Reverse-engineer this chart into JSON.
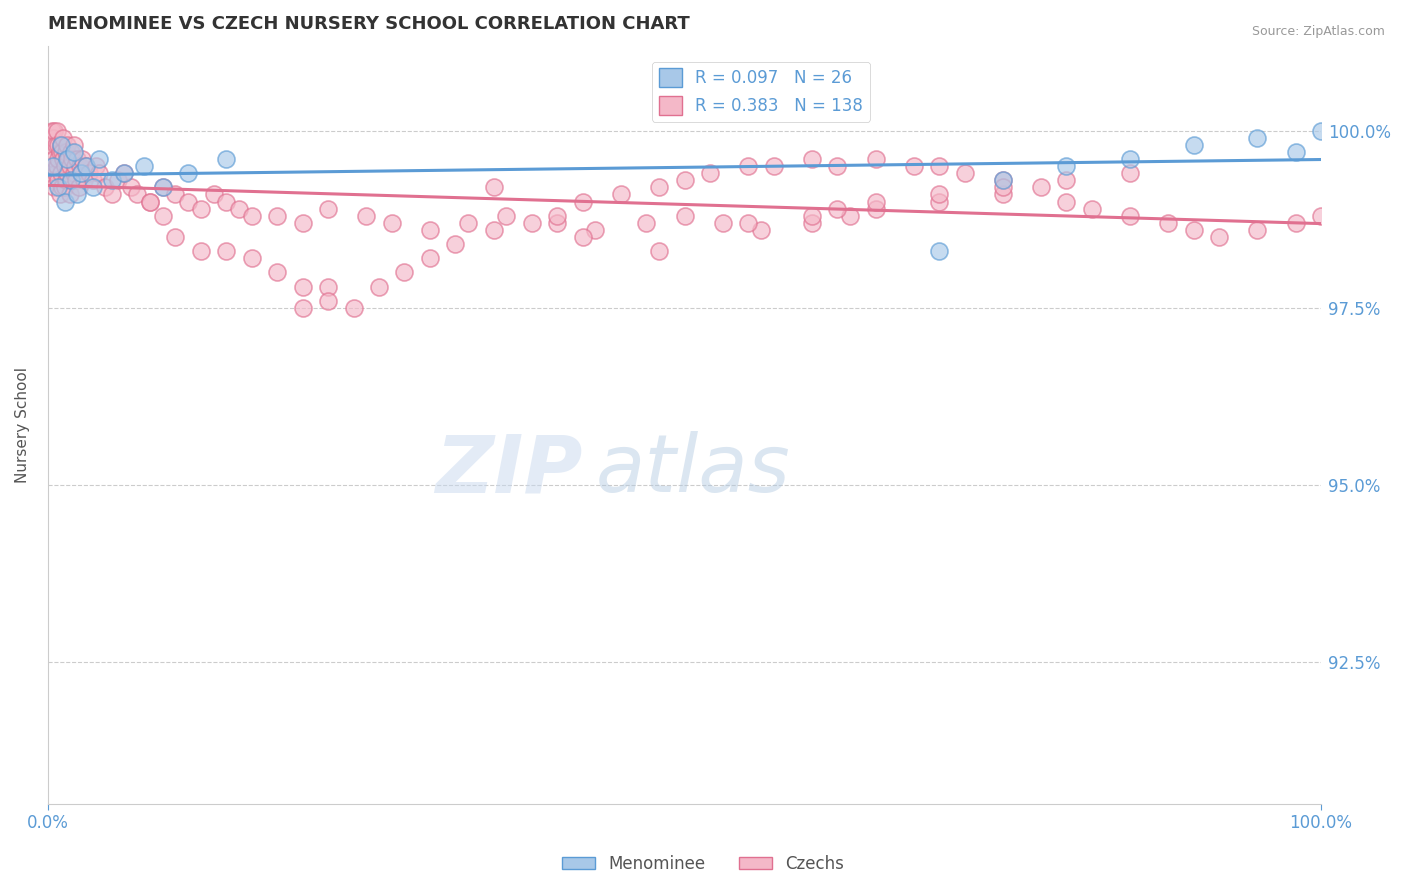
{
  "title": "MENOMINEE VS CZECH NURSERY SCHOOL CORRELATION CHART",
  "source_text": "Source: ZipAtlas.com",
  "ylabel": "Nursery School",
  "watermark_zip": "ZIP",
  "watermark_atlas": "atlas",
  "xlim": [
    0.0,
    100.0
  ],
  "ylim": [
    90.5,
    101.2
  ],
  "yticks": [
    92.5,
    95.0,
    97.5,
    100.0
  ],
  "ytick_labels": [
    "92.5%",
    "95.0%",
    "97.5%",
    "100.0%"
  ],
  "xticks": [
    0.0,
    100.0
  ],
  "xtick_labels": [
    "0.0%",
    "100.0%"
  ],
  "legend_R_blue": "0.097",
  "legend_N_blue": "26",
  "legend_R_pink": "0.383",
  "legend_N_pink": "138",
  "blue_fill": "#a8c8e8",
  "blue_edge": "#5b9bd5",
  "pink_fill": "#f4b8c8",
  "pink_edge": "#e07090",
  "trend_blue_color": "#5b9bd5",
  "trend_pink_color": "#e07090",
  "title_color": "#333333",
  "axis_label_color": "#5b9bd5",
  "grid_color": "#cccccc",
  "background_color": "#ffffff",
  "menominee_x": [
    0.4,
    0.8,
    1.0,
    1.3,
    1.5,
    1.8,
    2.0,
    2.3,
    2.6,
    3.0,
    3.5,
    4.0,
    5.0,
    6.0,
    7.5,
    9.0,
    11.0,
    14.0,
    70.0,
    75.0,
    80.0,
    85.0,
    90.0,
    95.0,
    98.0,
    100.0
  ],
  "menominee_y": [
    99.5,
    99.2,
    99.8,
    99.0,
    99.6,
    99.3,
    99.7,
    99.1,
    99.4,
    99.5,
    99.2,
    99.6,
    99.3,
    99.4,
    99.5,
    99.2,
    99.4,
    99.6,
    98.3,
    99.3,
    99.5,
    99.6,
    99.8,
    99.9,
    99.7,
    100.0
  ],
  "czechs_x": [
    0.2,
    0.3,
    0.3,
    0.4,
    0.4,
    0.5,
    0.5,
    0.5,
    0.6,
    0.6,
    0.7,
    0.7,
    0.8,
    0.8,
    0.8,
    0.9,
    0.9,
    1.0,
    1.0,
    1.1,
    1.1,
    1.2,
    1.2,
    1.3,
    1.3,
    1.4,
    1.4,
    1.5,
    1.5,
    1.6,
    1.7,
    1.7,
    1.8,
    1.8,
    1.9,
    2.0,
    2.0,
    2.1,
    2.2,
    2.3,
    2.4,
    2.5,
    2.6,
    2.7,
    2.8,
    3.0,
    3.2,
    3.5,
    3.8,
    4.0,
    4.5,
    5.0,
    5.5,
    6.0,
    6.5,
    7.0,
    8.0,
    9.0,
    10.0,
    11.0,
    12.0,
    13.0,
    14.0,
    15.0,
    16.0,
    18.0,
    20.0,
    22.0,
    25.0,
    27.0,
    30.0,
    33.0,
    36.0,
    40.0,
    43.0,
    47.0,
    50.0,
    53.0,
    56.0,
    60.0,
    63.0,
    65.0,
    70.0,
    75.0,
    20.0,
    22.0,
    10.0,
    12.0,
    8.0,
    9.0,
    14.0,
    16.0,
    18.0,
    20.0,
    22.0,
    24.0,
    26.0,
    28.0,
    30.0,
    32.0,
    35.0,
    38.0,
    40.0,
    42.0,
    45.0,
    48.0,
    50.0,
    52.0,
    55.0,
    57.0,
    60.0,
    62.0,
    65.0,
    68.0,
    70.0,
    72.0,
    75.0,
    78.0,
    80.0,
    82.0,
    85.0,
    88.0,
    90.0,
    92.0,
    95.0,
    98.0,
    100.0,
    60.0,
    35.0,
    65.0,
    42.0,
    48.0,
    55.0,
    62.0,
    70.0,
    75.0,
    80.0,
    85.0
  ],
  "czechs_y": [
    99.8,
    100.0,
    99.5,
    99.9,
    99.3,
    100.0,
    99.6,
    99.2,
    99.8,
    99.4,
    100.0,
    99.5,
    99.8,
    99.3,
    99.6,
    99.7,
    99.1,
    99.8,
    99.4,
    99.7,
    99.2,
    99.6,
    99.9,
    99.5,
    99.2,
    99.7,
    99.3,
    99.8,
    99.4,
    99.6,
    99.5,
    99.1,
    99.7,
    99.3,
    99.6,
    99.8,
    99.4,
    99.5,
    99.3,
    99.6,
    99.2,
    99.5,
    99.4,
    99.6,
    99.3,
    99.5,
    99.4,
    99.3,
    99.5,
    99.4,
    99.2,
    99.1,
    99.3,
    99.4,
    99.2,
    99.1,
    99.0,
    99.2,
    99.1,
    99.0,
    98.9,
    99.1,
    99.0,
    98.9,
    98.8,
    98.8,
    98.7,
    98.9,
    98.8,
    98.7,
    98.6,
    98.7,
    98.8,
    98.7,
    98.6,
    98.7,
    98.8,
    98.7,
    98.6,
    98.7,
    98.8,
    98.9,
    99.0,
    99.1,
    97.5,
    97.8,
    98.5,
    98.3,
    99.0,
    98.8,
    98.3,
    98.2,
    98.0,
    97.8,
    97.6,
    97.5,
    97.8,
    98.0,
    98.2,
    98.4,
    98.6,
    98.7,
    98.8,
    99.0,
    99.1,
    99.2,
    99.3,
    99.4,
    99.5,
    99.5,
    99.6,
    99.5,
    99.6,
    99.5,
    99.5,
    99.4,
    99.3,
    99.2,
    99.0,
    98.9,
    98.8,
    98.7,
    98.6,
    98.5,
    98.6,
    98.7,
    98.8,
    98.8,
    99.2,
    99.0,
    98.5,
    98.3,
    98.7,
    98.9,
    99.1,
    99.2,
    99.3,
    99.4
  ]
}
